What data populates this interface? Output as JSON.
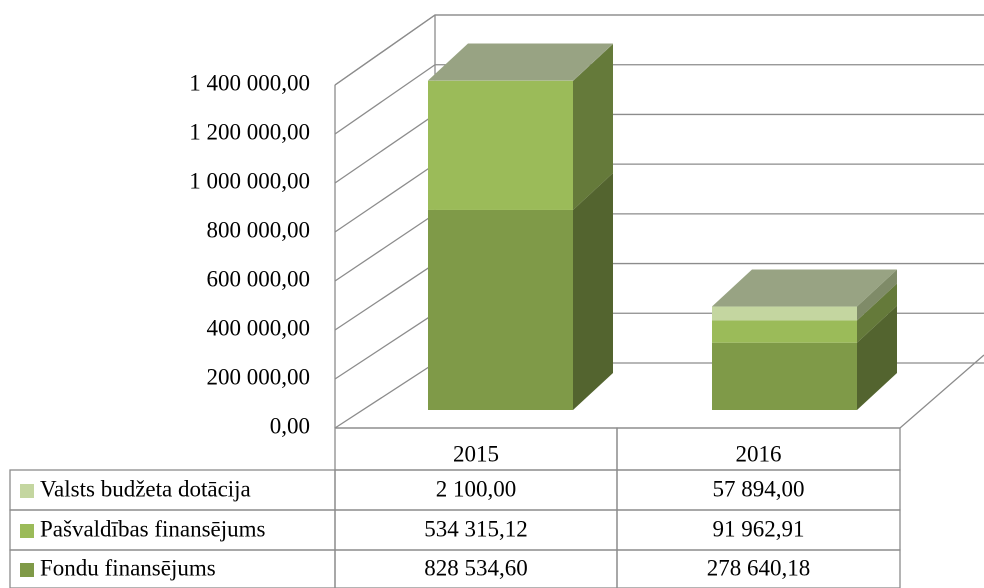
{
  "chart_data": {
    "type": "bar3d_stacked",
    "categories": [
      "2015",
      "2016"
    ],
    "series": [
      {
        "name": "Fondu finansējums",
        "color": "#7f9a48",
        "values": [
          828534.6,
          278640.18
        ],
        "value_labels": [
          "828 534,60",
          "278 640,18"
        ]
      },
      {
        "name": "Pašvaldības finansējums",
        "color": "#9bbb59",
        "values": [
          534315.12,
          91962.91
        ],
        "value_labels": [
          "534 315,12",
          "91 962,91"
        ]
      },
      {
        "name": "Valsts budžeta dotācija",
        "color": "#c4d6a0",
        "values": [
          2100.0,
          57894.0
        ],
        "value_labels": [
          "2 100,00",
          "57 894,00"
        ]
      }
    ],
    "ylim": [
      0,
      1400000
    ],
    "yticks": [
      {
        "value": 0,
        "label": "0,00"
      },
      {
        "value": 200000,
        "label": "200 000,00"
      },
      {
        "value": 400000,
        "label": "400 000,00"
      },
      {
        "value": 600000,
        "label": "600 000,00"
      },
      {
        "value": 800000,
        "label": "800 000,00"
      },
      {
        "value": 1000000,
        "label": "1 000 000,00"
      },
      {
        "value": 1200000,
        "label": "1 200 000,00"
      },
      {
        "value": 1400000,
        "label": "1 400 000,00"
      }
    ],
    "grid": true
  }
}
